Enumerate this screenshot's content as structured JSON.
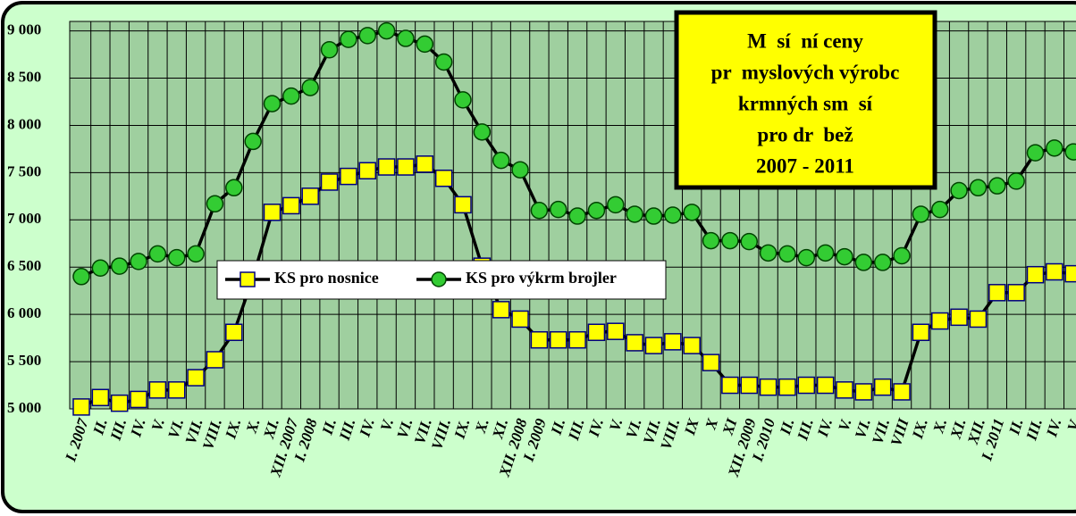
{
  "chart_data": {
    "type": "line",
    "title_lines": [
      "M  sí  ní ceny",
      "pr  myslových výrobc",
      "krmných sm  sí",
      "pro dr  bež",
      "2007 - 2011"
    ],
    "categories": [
      "I. 2007",
      "II.",
      "III.",
      "IV.",
      "V.",
      "VI.",
      "VII.",
      "VIII.",
      "IX.",
      "X.",
      "XI.",
      "XII. 2007",
      "I. 2008",
      "II.",
      "III.",
      "IV.",
      "V.",
      "VI.",
      "VII.",
      "VIII.",
      "IX.",
      "X.",
      "XI.",
      "XII. 2008",
      "I. 2009",
      "II.",
      "III.",
      "IV.",
      "V.",
      "VI.",
      "VII.",
      "VIII.",
      "IX",
      "X",
      "XI",
      "XII. 2009",
      "I. 2010",
      "II.",
      "III.",
      "IV.",
      "V.",
      "VI.",
      "VII.",
      "VIII",
      "IX.",
      "X.",
      "XI.",
      "XII.",
      "I. 2011",
      "II.",
      "III.",
      "IV.",
      "V."
    ],
    "series": [
      {
        "name": "KS  pro nosnice",
        "color": "#ffff00",
        "marker": "square",
        "values": [
          5020,
          5120,
          5060,
          5100,
          5200,
          5200,
          5330,
          5520,
          5810,
          6390,
          7080,
          7150,
          7250,
          7400,
          7460,
          7520,
          7560,
          7560,
          7590,
          7440,
          7160,
          6510,
          6050,
          5950,
          5730,
          5730,
          5730,
          5810,
          5820,
          5700,
          5670,
          5710,
          5670,
          5490,
          5250,
          5250,
          5230,
          5230,
          5250,
          5250,
          5200,
          5180,
          5230,
          5180,
          5810,
          5930,
          5970,
          5950,
          6230,
          6230,
          6420,
          6450,
          6430
        ]
      },
      {
        "name": "KS  pro výkrm brojler",
        "color": "#33cc33",
        "marker": "circle",
        "values": [
          6400,
          6490,
          6510,
          6560,
          6640,
          6600,
          6640,
          7170,
          7340,
          7830,
          8230,
          8310,
          8400,
          8800,
          8910,
          8950,
          9000,
          8920,
          8860,
          8670,
          8270,
          7930,
          7630,
          7530,
          7100,
          7110,
          7040,
          7100,
          7160,
          7060,
          7040,
          7050,
          7080,
          6780,
          6780,
          6770,
          6650,
          6640,
          6600,
          6650,
          6610,
          6550,
          6550,
          6620,
          7060,
          7110,
          7310,
          7340,
          7360,
          7410,
          7710,
          7760,
          7720
        ]
      }
    ],
    "ylim": [
      5000,
      9100
    ],
    "yticks": [
      {
        "value": 5000,
        "label": "5 000"
      },
      {
        "value": 5500,
        "label": "5 500"
      },
      {
        "value": 6000,
        "label": "6 000"
      },
      {
        "value": 6500,
        "label": "6 500"
      },
      {
        "value": 7000,
        "label": "7 000"
      },
      {
        "value": 7500,
        "label": "7 500"
      },
      {
        "value": 8000,
        "label": "8 000"
      },
      {
        "value": 8500,
        "label": "8 500"
      },
      {
        "value": 9000,
        "label": "9 000"
      }
    ],
    "grid": true
  }
}
